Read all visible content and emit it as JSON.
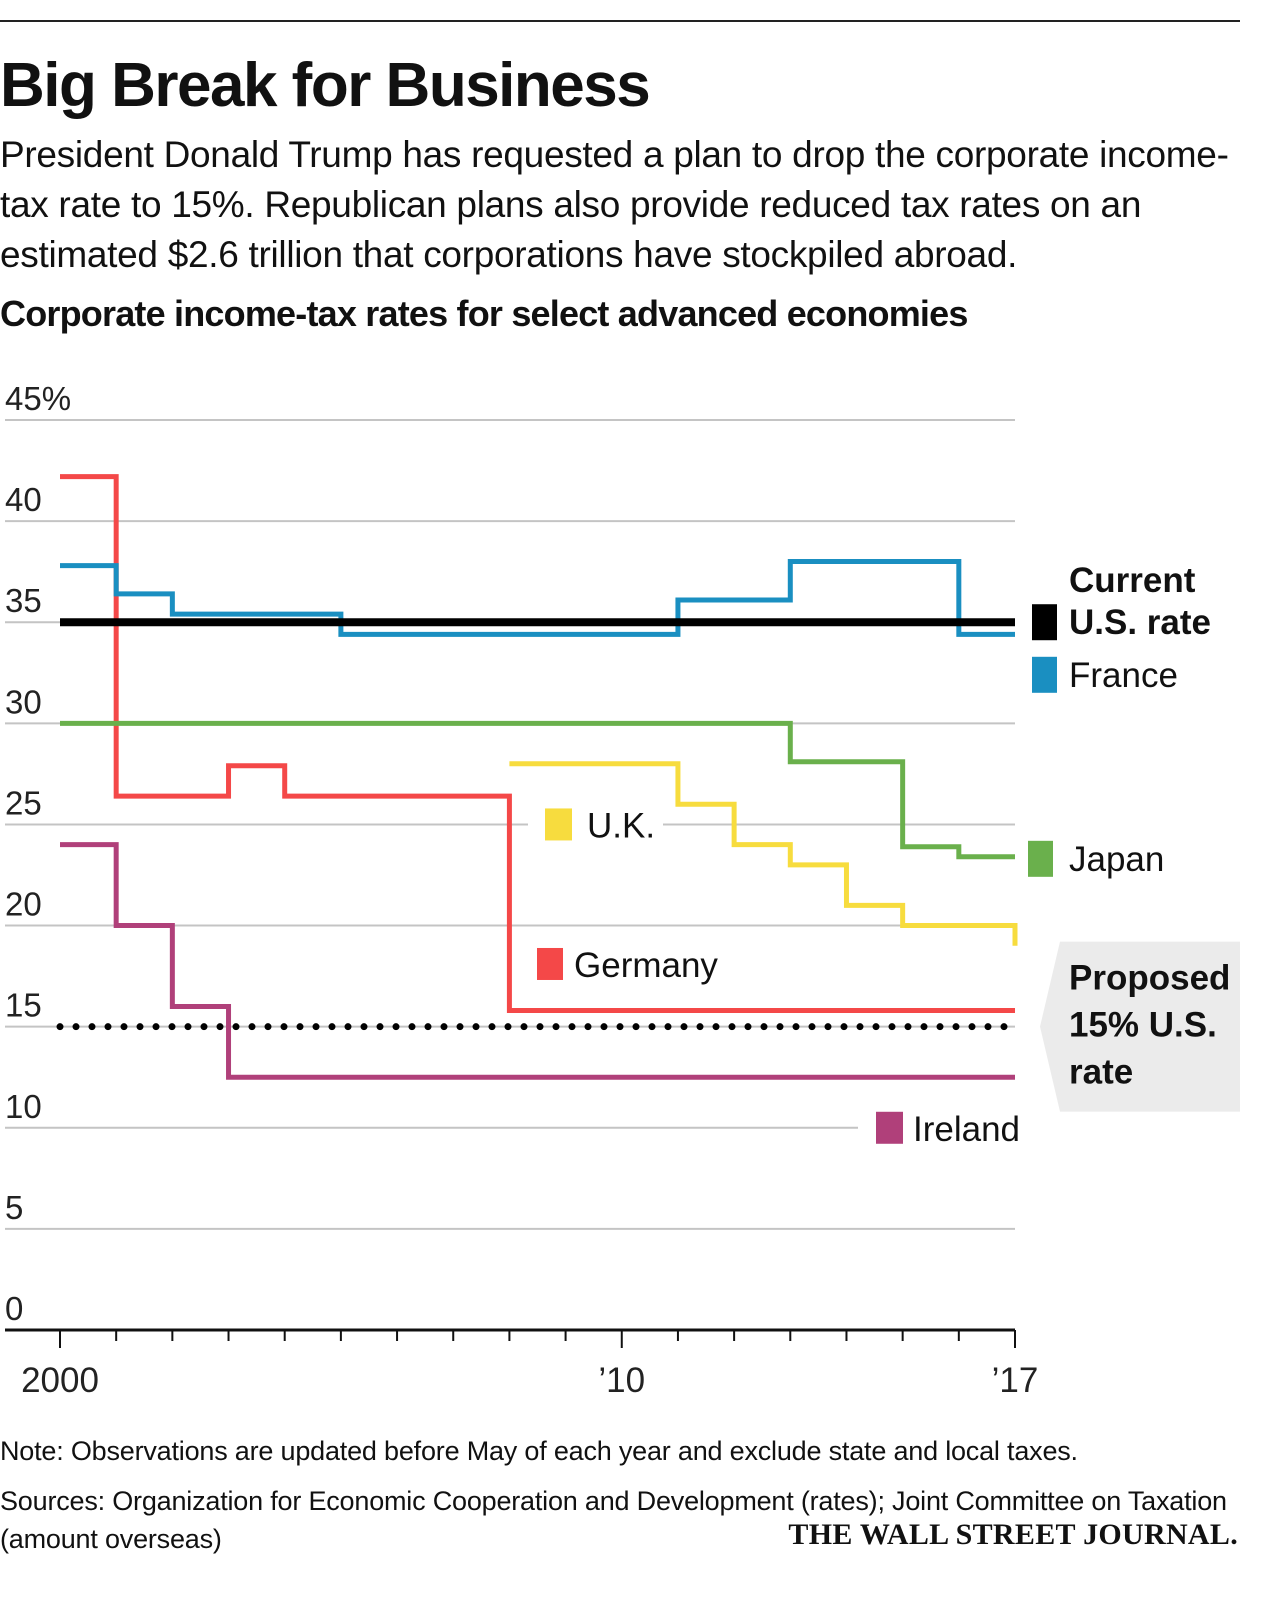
{
  "header": {
    "title": "Big Break for Business",
    "subtitle": "President Donald Trump has requested a plan to drop the corporate income-tax rate to 15%. Republican plans also provide reduced tax rates on an estimated $2.6 trillion that corporations have stockpiled abroad.",
    "chart_title": "Corporate income-tax rates for select advanced economies"
  },
  "chart_data": {
    "type": "line",
    "step": true,
    "title": "Corporate income-tax rates for select advanced economies",
    "xlabel": "",
    "ylabel": "",
    "xlim": [
      2000,
      2017
    ],
    "ylim": [
      0,
      45
    ],
    "y_ticks": [
      0,
      5,
      10,
      15,
      20,
      25,
      30,
      35,
      40,
      45
    ],
    "y_tick_labels": [
      "0",
      "5",
      "10",
      "15",
      "20",
      "25",
      "30",
      "35",
      "40",
      "45%"
    ],
    "x_ticks": [
      2000,
      2001,
      2002,
      2003,
      2004,
      2005,
      2006,
      2007,
      2008,
      2009,
      2010,
      2011,
      2012,
      2013,
      2014,
      2015,
      2016,
      2017
    ],
    "x_tick_labels": [
      {
        "year": 2000,
        "label": "2000"
      },
      {
        "year": 2010,
        "label": "’10"
      },
      {
        "year": 2017,
        "label": "’17"
      }
    ],
    "series": [
      {
        "name": "Current U.S. rate",
        "color": "#000000",
        "style": "solid-thick",
        "x": [
          2000,
          2017
        ],
        "values": [
          35,
          35
        ]
      },
      {
        "name": "Proposed 15% U.S. rate",
        "color": "#000000",
        "style": "dotted",
        "x": [
          2000,
          2017
        ],
        "values": [
          15,
          15
        ]
      },
      {
        "name": "France",
        "color": "#1a8fc1",
        "x": [
          2000,
          2001,
          2002,
          2005,
          2011,
          2013,
          2016,
          2017
        ],
        "values": [
          37.8,
          36.4,
          35.4,
          34.4,
          36.1,
          38.0,
          34.4,
          34.4
        ]
      },
      {
        "name": "Japan",
        "color": "#6ab04c",
        "x": [
          2000,
          2013,
          2015,
          2016,
          2017
        ],
        "values": [
          30.0,
          28.1,
          23.9,
          23.4,
          23.4
        ]
      },
      {
        "name": "U.K.",
        "color": "#f7dc3e",
        "x": [
          2008,
          2011,
          2012,
          2013,
          2014,
          2015,
          2017
        ],
        "values": [
          28,
          26,
          24,
          23,
          21,
          20,
          19
        ]
      },
      {
        "name": "Germany",
        "color": "#f44848",
        "x": [
          2000,
          2001,
          2003,
          2004,
          2008,
          2017
        ],
        "values": [
          42.2,
          26.4,
          27.9,
          26.4,
          15.8,
          15.8
        ]
      },
      {
        "name": "Ireland",
        "color": "#b0407a",
        "x": [
          2000,
          2001,
          2002,
          2003,
          2017
        ],
        "values": [
          24,
          20,
          16,
          12.5,
          12.5
        ]
      }
    ],
    "labels": {
      "current_line1": "Current",
      "current_line2": "U.S. rate",
      "france": "France",
      "japan": "Japan",
      "uk": "U.K.",
      "germany": "Germany",
      "ireland": "Ireland",
      "proposed_line1": "Proposed",
      "proposed_line2": "15% U.S.",
      "proposed_line3": "rate"
    },
    "callout_color": "#ebebeb",
    "grid_color": "#c4c4c4"
  },
  "footer": {
    "note": "Note: Observations are updated before May of each year and exclude state and local taxes.",
    "sources": "Sources: Organization for Economic Cooperation and Development (rates); Joint Committee on Taxation (amount overseas)",
    "brand": "THE WALL STREET JOURNAL."
  }
}
